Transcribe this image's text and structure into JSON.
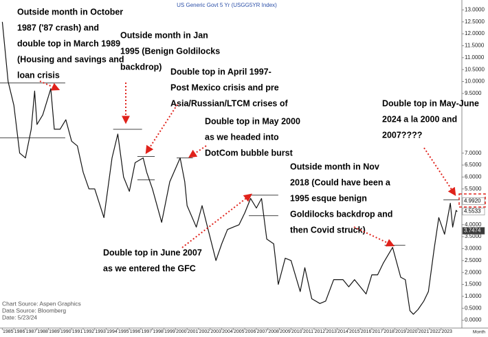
{
  "chart_data": {
    "type": "line",
    "title": "US Generic Govt 5 Yr (USGG5YR Index)",
    "x_axis_label": "Month",
    "x": [
      1985.0,
      1985.5,
      1986.0,
      1986.5,
      1987.0,
      1987.5,
      1987.8,
      1988.0,
      1988.5,
      1989.2,
      1989.5,
      1990.0,
      1990.5,
      1991.0,
      1991.5,
      1992.0,
      1992.5,
      1993.0,
      1993.8,
      1994.5,
      1995.0,
      1995.5,
      1996.0,
      1996.5,
      1997.2,
      1997.5,
      1998.0,
      1998.8,
      1999.5,
      2000.4,
      2000.8,
      2001.0,
      2001.8,
      2002.3,
      2003.5,
      2004.0,
      2004.5,
      2005.0,
      2005.5,
      2006.0,
      2006.5,
      2007.0,
      2007.45,
      2007.9,
      2008.5,
      2008.9,
      2009.5,
      2010.0,
      2010.8,
      2011.2,
      2011.8,
      2012.5,
      2013.0,
      2013.7,
      2014.5,
      2015.0,
      2015.5,
      2016.5,
      2017.0,
      2017.5,
      2018.0,
      2018.8,
      2019.5,
      2019.9,
      2020.3,
      2020.6,
      2021.0,
      2021.5,
      2021.9,
      2022.4,
      2022.8,
      2023.3,
      2023.8,
      2024.0,
      2024.3,
      2024.4
    ],
    "series": [
      {
        "name": "USGG5YR Index",
        "color": "#111111",
        "values": [
          12.5,
          10.0,
          9.0,
          7.0,
          6.8,
          8.0,
          9.6,
          8.2,
          8.6,
          9.7,
          8.0,
          8.0,
          8.4,
          7.5,
          7.3,
          6.2,
          5.5,
          5.5,
          4.3,
          6.8,
          7.8,
          6.0,
          5.4,
          6.6,
          6.8,
          6.2,
          5.5,
          4.1,
          5.8,
          6.8,
          5.8,
          4.8,
          3.9,
          4.8,
          2.5,
          3.2,
          3.8,
          3.9,
          4.0,
          4.5,
          5.1,
          4.7,
          5.1,
          3.4,
          3.2,
          1.5,
          2.6,
          2.5,
          1.2,
          2.2,
          0.9,
          0.7,
          0.8,
          1.7,
          1.7,
          1.4,
          1.7,
          1.1,
          1.9,
          1.9,
          2.4,
          3.05,
          1.8,
          1.7,
          0.4,
          0.25,
          0.45,
          0.8,
          1.2,
          3.0,
          4.3,
          3.6,
          4.9,
          3.9,
          4.6,
          4.55
        ]
      }
    ],
    "xlim": [
      1984.8,
      2024.8
    ],
    "xticks": [
      1985,
      1986,
      1987,
      1988,
      1989,
      1990,
      1991,
      1992,
      1993,
      1994,
      1995,
      1996,
      1997,
      1998,
      1999,
      2000,
      2001,
      2002,
      2003,
      2004,
      2005,
      2006,
      2007,
      2008,
      2009,
      2010,
      2011,
      2012,
      2013,
      2014,
      2015,
      2016,
      2017,
      2018,
      2019,
      2020,
      2021,
      2022,
      2023
    ],
    "ylim": [
      -0.3,
      13.3
    ],
    "yticks": [
      {
        "value": 0,
        "label": "0.0000"
      },
      {
        "value": 0.5,
        "label": "0.5000"
      },
      {
        "value": 1,
        "label": "1.0000"
      },
      {
        "value": 1.5,
        "label": "1.5000"
      },
      {
        "value": 2,
        "label": "2.0000"
      },
      {
        "value": 2.5,
        "label": "2.5000"
      },
      {
        "value": 3,
        "label": "3.0000"
      },
      {
        "value": 3.5,
        "label": "3.5000"
      },
      {
        "value": 4,
        "label": "4.0000"
      },
      {
        "value": 4.5,
        "label": "4.5000"
      },
      {
        "value": 5,
        "label": "5.0000"
      },
      {
        "value": 5.5,
        "label": "5.5000"
      },
      {
        "value": 6,
        "label": "6.0000"
      },
      {
        "value": 6.5,
        "label": "6.5000"
      },
      {
        "value": 7,
        "label": "7.0000"
      },
      {
        "value": 9.5,
        "label": "9.5000"
      },
      {
        "value": 10,
        "label": "10.0000"
      },
      {
        "value": 10.5,
        "label": "10.5000"
      },
      {
        "value": 11,
        "label": "11.0000"
      },
      {
        "value": 11.5,
        "label": "11.5000"
      },
      {
        "value": 12,
        "label": "12.0000"
      },
      {
        "value": 12.5,
        "label": "12.5000"
      },
      {
        "value": 13,
        "label": "13.0000"
      }
    ],
    "price_labels": [
      {
        "value": 4.992,
        "label": "4.9920"
      },
      {
        "value": 4.5533,
        "label": "4.5533"
      },
      {
        "value": 3.7474,
        "label": "3.7474"
      }
    ],
    "levels": [
      {
        "value": 9.94,
        "x": [
          1984.8,
          1990.45
        ]
      },
      {
        "value": 7.64,
        "x": [
          1984.8,
          1990.45
        ]
      },
      {
        "value": 8.0,
        "x": [
          1994.6,
          1997.1
        ]
      },
      {
        "value": 6.86,
        "x": [
          1996.7,
          1998.2
        ]
      },
      {
        "value": 5.88,
        "x": [
          1996.7,
          1998.2
        ]
      },
      {
        "value": 6.8,
        "x": [
          2000.1,
          2001.5
        ]
      },
      {
        "value": 5.24,
        "x": [
          2006.35,
          2008.9
        ]
      },
      {
        "value": 4.38,
        "x": [
          2006.35,
          2008.9
        ]
      },
      {
        "value": 3.14,
        "x": [
          2018.1,
          2019.9
        ]
      },
      {
        "value": 5.04,
        "x": [
          2023.2,
          2024.6
        ]
      }
    ],
    "annotations": [
      [
        "Outside month in October",
        "1987 ('87 crash) and",
        "double top in March 1989",
        "(Housing and savings and",
        "loan crisis"
      ],
      [
        "Outside month in Jan",
        "1995 (Benign Goldilocks",
        "backdrop)"
      ],
      [
        "Double top in April 1997-",
        "Post Mexico crisis and pre",
        "Asia/Russian/LTCM crises of"
      ],
      [
        "Double top in May 2000",
        "as we headed into",
        "DotCom bubble burst"
      ],
      [
        "Outside month in Nov",
        "2018 (Could have been a",
        "1995 esque benign",
        "Goldilocks backdrop and",
        "then Covid struck)"
      ],
      [
        "Double top in June 2007",
        "as we entered the GFC"
      ],
      [
        "Double top in May-June",
        "2024 a la 2000 and",
        "2007????"
      ]
    ],
    "footnotes": [
      "Chart Source: Aspen Graphics",
      "Data Source: Bloomberg",
      "Date:      5/23/24"
    ]
  }
}
